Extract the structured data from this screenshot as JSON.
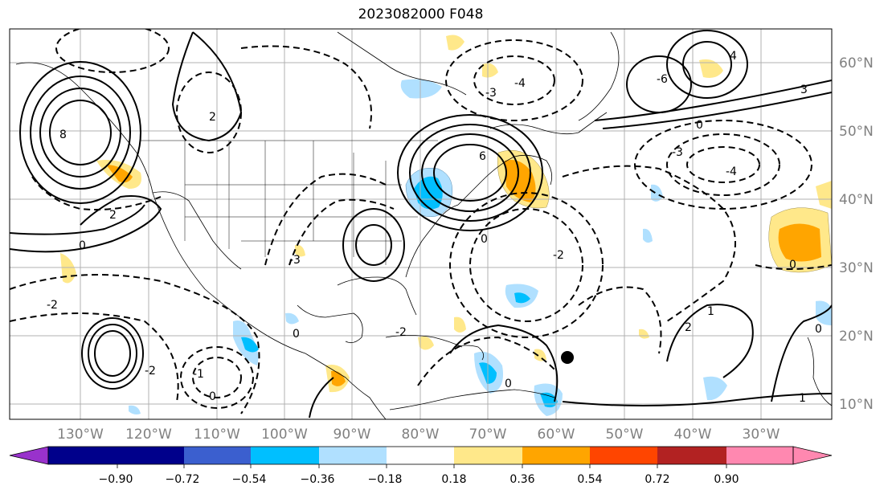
{
  "title": "2023082000 F048",
  "lon_labels": [
    "130°W",
    "120°W",
    "110°W",
    "100°W",
    "90°W",
    "80°W",
    "70°W",
    "60°W",
    "50°W",
    "40°W",
    "30°W"
  ],
  "lat_labels": [
    "60°N",
    "50°N",
    "40°N",
    "30°N",
    "20°N",
    "10°N"
  ],
  "colorbar": {
    "colors": [
      "#9932cc",
      "#00008b",
      "#3b5fcf",
      "#00bfff",
      "#b0e0ff",
      "#ffffff",
      "#ffe88a",
      "#ffa500",
      "#ff4500",
      "#b22222",
      "#ff88b0"
    ],
    "ticks": [
      "−0.90",
      "−0.72",
      "−0.54",
      "−0.36",
      "−0.18",
      "0.18",
      "0.36",
      "0.54",
      "0.72",
      "0.90"
    ]
  },
  "contour_labels": [
    "0",
    "-2",
    "2",
    "-4",
    "4",
    "-6",
    "6",
    "8",
    "-1",
    "1",
    "-3",
    "3"
  ],
  "marker": {
    "lon": -58.5,
    "lat": 16.8
  }
}
